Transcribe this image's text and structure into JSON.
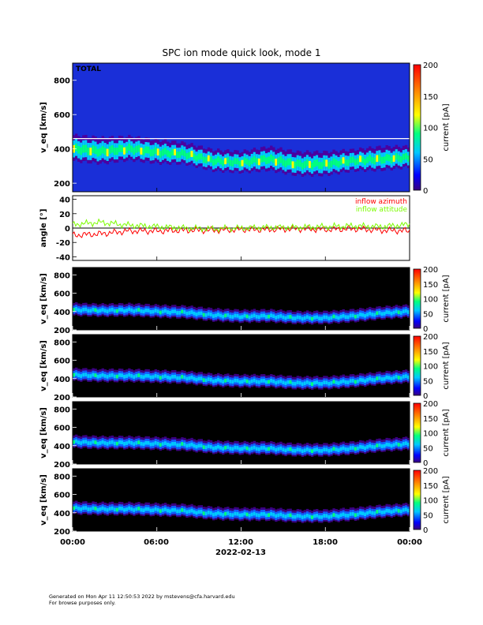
{
  "title": "SPC ion mode quick look, mode 1",
  "footer": {
    "line1": "Generated on Mon Apr 11 12:50:53 2022 by mstevens@cfa.harvard.edu",
    "line2": "For browse purposes only."
  },
  "chart_data": [
    {
      "type": "heatmap",
      "panel_label": "TOTAL",
      "ylabel": "v_eq [km/s]",
      "ylim": [
        150,
        900
      ],
      "yticks": [
        200,
        400,
        600,
        800
      ],
      "colorbar": {
        "label": "current [pA]",
        "range": [
          0,
          200
        ],
        "ticks": [
          0,
          50,
          100,
          150,
          200
        ]
      },
      "background": "#1a2fd8",
      "band_center_kms": [
        400,
        385,
        400,
        380,
        370,
        330,
        320,
        340,
        310,
        310,
        330,
        340,
        350
      ],
      "band_halfwidth_kms": [
        50,
        50,
        45,
        45,
        40,
        40,
        40,
        45,
        45,
        45,
        40,
        45,
        40
      ]
    },
    {
      "type": "line",
      "ylabel": "angle [°]",
      "ylim": [
        -45,
        45
      ],
      "yticks": [
        -40,
        -20,
        0,
        20,
        40
      ],
      "legend_position": "top-right",
      "series": [
        {
          "name": "inflow azimuth",
          "color": "#ff0000",
          "values": [
            -10,
            -8,
            -4,
            -4,
            -3,
            -3,
            -2,
            -2,
            -1,
            -2,
            -1,
            -3,
            -4
          ]
        },
        {
          "name": "inflow attitude",
          "color": "#7cfc00",
          "values": [
            5,
            8,
            4,
            2,
            0,
            -1,
            0,
            1,
            1,
            2,
            3,
            2,
            5
          ]
        }
      ]
    },
    {
      "type": "heatmap",
      "ylabel": "v_eq [km/s]",
      "ylim": [
        200,
        880
      ],
      "yticks": [
        200,
        400,
        600,
        800
      ],
      "colorbar": {
        "label": "current [pA]",
        "range": [
          0,
          200
        ],
        "ticks": [
          0,
          50,
          100,
          150,
          200
        ]
      },
      "band_center_kms": [
        420,
        410,
        415,
        400,
        390,
        360,
        345,
        350,
        330,
        330,
        350,
        380,
        400
      ]
    },
    {
      "type": "heatmap",
      "ylabel": "v_eq [km/s]",
      "ylim": [
        200,
        880
      ],
      "yticks": [
        200,
        400,
        600,
        800
      ],
      "colorbar": {
        "label": "current [pA]",
        "range": [
          0,
          200
        ],
        "ticks": [
          0,
          50,
          100,
          150,
          200
        ]
      },
      "band_center_kms": [
        440,
        430,
        430,
        420,
        410,
        380,
        370,
        370,
        350,
        350,
        370,
        400,
        420
      ]
    },
    {
      "type": "heatmap",
      "ylabel": "v_eq [km/s]",
      "ylim": [
        200,
        880
      ],
      "yticks": [
        200,
        400,
        600,
        800
      ],
      "colorbar": {
        "label": "current [pA]",
        "range": [
          0,
          200
        ],
        "ticks": [
          0,
          50,
          100,
          150,
          200
        ]
      },
      "band_center_kms": [
        440,
        430,
        430,
        420,
        410,
        380,
        370,
        370,
        350,
        350,
        370,
        400,
        420
      ]
    },
    {
      "type": "heatmap",
      "ylabel": "v_eq [km/s]",
      "ylim": [
        200,
        880
      ],
      "yticks": [
        200,
        400,
        600,
        800
      ],
      "colorbar": {
        "label": "current [pA]",
        "range": [
          0,
          200
        ],
        "ticks": [
          0,
          50,
          100,
          150,
          200
        ]
      },
      "band_center_kms": [
        450,
        440,
        440,
        430,
        420,
        390,
        380,
        380,
        360,
        360,
        380,
        410,
        430
      ]
    }
  ],
  "x_axis": {
    "ticks": [
      "00:00",
      "06:00",
      "12:00",
      "18:00",
      "00:00"
    ],
    "date_label": "2022-02-13"
  }
}
